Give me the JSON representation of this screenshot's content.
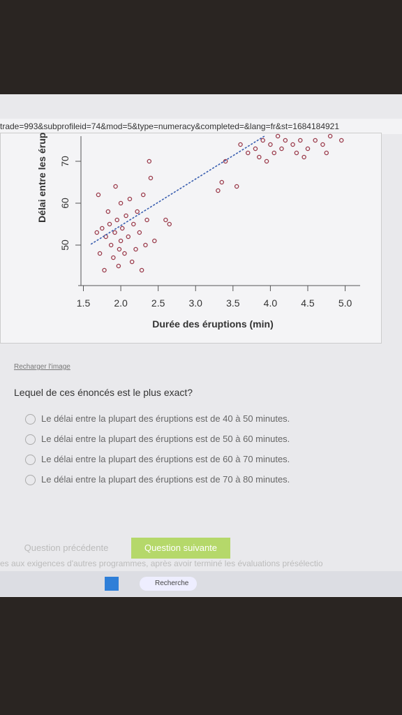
{
  "url": "trade=993&subprofileid=74&mod=5&type=numeracy&completed=&lang=fr&st=1684184921",
  "chart_data": {
    "type": "scatter",
    "x_label": "Durée des éruptions (min)",
    "y_label": "Délai entre les érupti",
    "xlim": [
      1.43,
      5.2
    ],
    "ylim": [
      41,
      76
    ],
    "xticks": [
      {
        "value": 1.5,
        "label": "1.5"
      },
      {
        "value": 2,
        "label": "2.0"
      },
      {
        "value": 2.5,
        "label": "2.5"
      },
      {
        "value": 3,
        "label": "3.0"
      },
      {
        "value": 3.5,
        "label": "3.5"
      },
      {
        "value": 4,
        "label": "4.0"
      },
      {
        "value": 4.5,
        "label": "4.5"
      },
      {
        "value": 5,
        "label": "5.0"
      }
    ],
    "yticks": [
      50,
      60,
      70
    ],
    "series": [
      {
        "color": "#9a3a4a",
        "x": [
          1.75,
          1.8,
          1.83,
          1.85,
          1.87,
          1.9,
          1.92,
          1.95,
          1.97,
          1.98,
          2.0,
          2.0,
          2.02,
          2.05,
          2.07,
          2.1,
          2.12,
          2.15,
          2.17,
          2.2,
          2.22,
          2.25,
          2.3,
          2.33,
          2.35,
          2.4,
          2.45,
          1.7,
          1.72,
          1.78,
          1.93,
          2.28,
          1.68,
          2.38,
          2.6,
          2.65,
          3.3,
          3.35,
          3.55,
          3.4,
          3.6,
          3.7,
          3.8,
          3.85,
          3.9,
          3.95,
          4.0,
          4.05,
          4.1,
          4.15,
          4.2,
          4.3,
          4.35,
          4.4,
          4.45,
          4.5,
          4.6,
          4.7,
          4.75,
          4.8,
          4.95
        ],
        "y": [
          54,
          52,
          58,
          55,
          50,
          47,
          53,
          56,
          45,
          49,
          60,
          51,
          54,
          48,
          57,
          52,
          61,
          46,
          55,
          49,
          58,
          53,
          62,
          50,
          56,
          66,
          51,
          62,
          48,
          44,
          64,
          44,
          53,
          70,
          56,
          55,
          63,
          65,
          64,
          70,
          74,
          72,
          73,
          71,
          75,
          70,
          74,
          72,
          76,
          73,
          75,
          74,
          72,
          75,
          71,
          73,
          75,
          74,
          72,
          76,
          75
        ]
      }
    ],
    "trend": {
      "color": "#3a5fb0",
      "x": [
        1.6,
        3.92
      ],
      "y": [
        50.2,
        76
      ]
    }
  },
  "reload": "Recharger l'image",
  "question": "Lequel de ces énoncés est le plus exact?",
  "options": [
    "Le délai entre la plupart des éruptions est de 40 à 50 minutes.",
    "Le délai entre la plupart des éruptions est de 50 à 60 minutes.",
    "Le délai entre la plupart des éruptions est de 60 à 70 minutes.",
    "Le délai entre la plupart des éruptions est de 70 à 80 minutes."
  ],
  "prev": "Question précédente",
  "next": "Question suivante",
  "footer": "es aux exigences d'autres programmes, après avoir terminé les évaluations présélectio",
  "search": "Recherche"
}
